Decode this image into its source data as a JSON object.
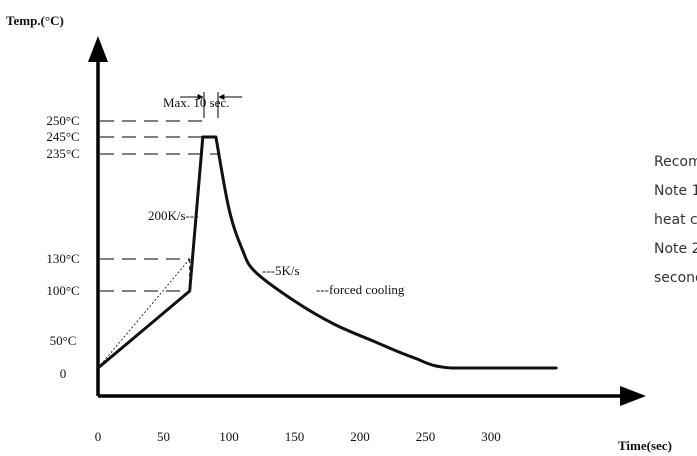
{
  "chart_data": {
    "type": "line",
    "title": "",
    "ylabel": "Temp.(°C)",
    "xlabel": "Time(sec)",
    "x_ticks": [
      "0",
      "50",
      "100",
      "150",
      "200",
      "250",
      "300"
    ],
    "y_ticks": [
      {
        "label": "0",
        "value": 0
      },
      {
        "label": "50°C",
        "value": 50
      },
      {
        "label": "100°C",
        "value": 100
      },
      {
        "label": "130°C",
        "value": 130
      },
      {
        "label": "235°C",
        "value": 235
      },
      {
        "label": "245°C",
        "value": 245
      },
      {
        "label": "250°C",
        "value": 250
      }
    ],
    "xlim": [
      0,
      360
    ],
    "ylim": [
      0,
      270
    ],
    "series": [
      {
        "x": [
          0,
          70,
          80,
          90,
          100,
          110,
          120,
          150,
          180,
          210,
          240,
          270,
          350
        ],
        "y": [
          30,
          100,
          245,
          245,
          180,
          140,
          118,
          90,
          67,
          50,
          38,
          30,
          30
        ]
      }
    ],
    "guide_line": {
      "x": [
        0,
        70
      ],
      "y": [
        30,
        130
      ]
    },
    "annotations": {
      "max_time": "Max. 10 sec.",
      "ramp_rate": "200K/s---",
      "cooling_rate": "---5K/s",
      "forced_cooling": "---forced cooling"
    }
  },
  "side_text": [
    "Recommended",
    "Note 1:",
    "heat cap",
    "Note 2:",
    "seconds"
  ],
  "colors": {
    "line": "#111111",
    "axis": "#000000"
  }
}
